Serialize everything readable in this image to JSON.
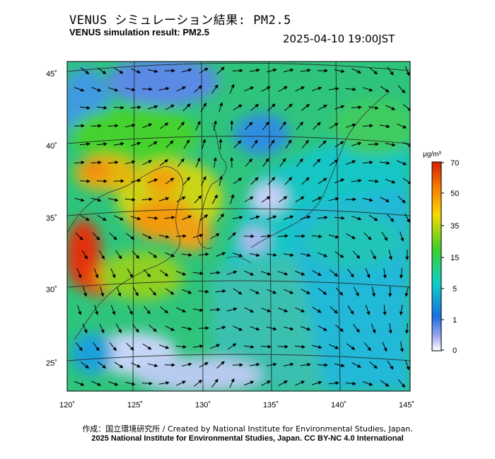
{
  "header": {
    "title_jp": "VENUS シミュレーション結果: PM2.5",
    "title_en": "VENUS simulation result: PM2.5",
    "timestamp": "2025-04-10 19:00JST"
  },
  "map": {
    "lat_labels": [
      "45˚",
      "40˚",
      "35˚",
      "30˚",
      "25˚"
    ],
    "lon_labels": [
      "120˚",
      "125˚",
      "130˚",
      "135˚",
      "140˚",
      "145˚"
    ]
  },
  "legend": {
    "unit": "μg/m³",
    "ticks": [
      "70",
      "50",
      "35",
      "15",
      "5",
      "1",
      "0"
    ],
    "colors": [
      "#d81e05",
      "#f77f00",
      "#f7d800",
      "#3fcf2a",
      "#0fd0c8",
      "#1a6fe0",
      "#9aa6ee",
      "#ffffff"
    ]
  },
  "footer": {
    "credit_jp": "作成：国立環境研究所 / Created by National Institute for Environmental Studies, Japan.",
    "copyright": "2025 National Institute for Environmental Studies, Japan. CC BY-NC 4.0 International"
  }
}
